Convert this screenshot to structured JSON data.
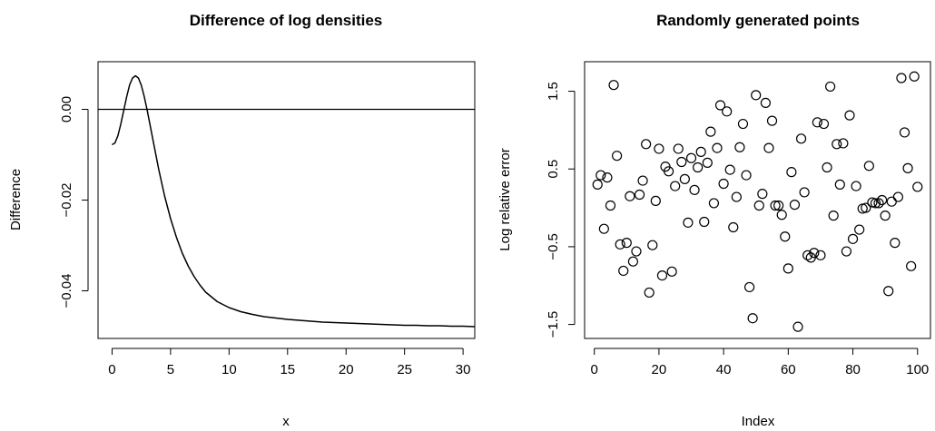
{
  "chart_data": [
    {
      "type": "line",
      "title": "Difference of log densities",
      "xlabel": "x",
      "ylabel": "Difference",
      "xlim": [
        -1.2,
        31
      ],
      "ylim": [
        -0.0505,
        0.0105
      ],
      "xticks": [
        0,
        5,
        10,
        15,
        20,
        25,
        30
      ],
      "xtick_labels": [
        "0",
        "5",
        "10",
        "15",
        "20",
        "25",
        "30"
      ],
      "yticks": [
        -0.04,
        -0.02,
        0.0
      ],
      "ytick_labels": [
        "−0.04",
        "−0.02",
        "0.00"
      ],
      "reference_line_y": 0,
      "series": [
        {
          "x": [
            0,
            0.25,
            0.5,
            0.75,
            1,
            1.25,
            1.5,
            1.75,
            2,
            2.25,
            2.5,
            2.75,
            3,
            3.5,
            4,
            4.5,
            5,
            5.5,
            6,
            6.5,
            7,
            7.5,
            8,
            9,
            10,
            11,
            12,
            13,
            14,
            15,
            16,
            17,
            18,
            19,
            20,
            21,
            22,
            23,
            24,
            25,
            26,
            27,
            28,
            29,
            30,
            31
          ],
          "y": [
            -0.0078,
            -0.0074,
            -0.0058,
            -0.0032,
            -0.0002,
            0.0028,
            0.0054,
            0.0069,
            0.0074,
            0.0069,
            0.0053,
            0.0028,
            -0.0002,
            -0.0068,
            -0.0134,
            -0.0192,
            -0.0241,
            -0.0282,
            -0.0317,
            -0.0345,
            -0.0368,
            -0.0387,
            -0.0403,
            -0.0424,
            -0.0437,
            -0.0446,
            -0.0452,
            -0.0457,
            -0.046,
            -0.0463,
            -0.0465,
            -0.0467,
            -0.0469,
            -0.047,
            -0.0471,
            -0.0472,
            -0.0473,
            -0.0474,
            -0.0475,
            -0.0476,
            -0.0476,
            -0.0477,
            -0.0477,
            -0.0478,
            -0.0478,
            -0.0479
          ]
        }
      ]
    },
    {
      "type": "scatter",
      "title": "Randomly generated points",
      "xlabel": "Index",
      "ylabel": "Log relative error",
      "xlim": [
        -3,
        104
      ],
      "ylim": [
        -1.68,
        1.88
      ],
      "xticks": [
        0,
        20,
        40,
        60,
        80,
        100
      ],
      "xtick_labels": [
        "0",
        "20",
        "40",
        "60",
        "80",
        "100"
      ],
      "yticks": [
        -1.5,
        -0.5,
        0.5,
        1.5
      ],
      "ytick_labels": [
        "−1.5",
        "−0.5",
        "0.5",
        "1.5"
      ],
      "series": [
        {
          "x": [
            1,
            2,
            3,
            4,
            5,
            6,
            7,
            8,
            9,
            10,
            11,
            12,
            13,
            14,
            15,
            16,
            17,
            18,
            19,
            20,
            21,
            22,
            23,
            24,
            25,
            26,
            27,
            28,
            29,
            30,
            31,
            32,
            33,
            34,
            35,
            36,
            37,
            38,
            39,
            40,
            41,
            42,
            43,
            44,
            45,
            46,
            47,
            48,
            49,
            50,
            51,
            52,
            53,
            54,
            55,
            56,
            57,
            58,
            59,
            60,
            61,
            62,
            63,
            64,
            65,
            66,
            67,
            68,
            69,
            70,
            71,
            72,
            73,
            74,
            75,
            76,
            77,
            78,
            79,
            80,
            81,
            82,
            83,
            84,
            85,
            86,
            87,
            88,
            89,
            90,
            91,
            92,
            93,
            94,
            95,
            96,
            97,
            98,
            99,
            100
          ],
          "y": [
            0.3,
            0.42,
            -0.27,
            0.39,
            0.03,
            1.58,
            0.67,
            -0.47,
            -0.81,
            -0.45,
            0.15,
            -0.69,
            -0.56,
            0.17,
            0.35,
            0.82,
            -1.09,
            -0.48,
            0.09,
            0.76,
            -0.87,
            0.53,
            0.47,
            -0.82,
            0.28,
            0.76,
            0.59,
            0.37,
            -0.19,
            0.64,
            0.23,
            0.52,
            0.72,
            -0.18,
            0.58,
            0.98,
            0.06,
            0.77,
            1.32,
            0.31,
            1.24,
            0.49,
            -0.25,
            0.14,
            0.78,
            1.08,
            0.42,
            -1.02,
            -1.42,
            1.45,
            0.03,
            0.18,
            1.35,
            0.77,
            1.12,
            0.03,
            0.03,
            -0.09,
            -0.37,
            -0.78,
            0.46,
            0.04,
            -1.53,
            0.89,
            0.2,
            -0.61,
            -0.64,
            -0.58,
            1.1,
            -0.61,
            1.08,
            0.52,
            1.56,
            -0.1,
            0.82,
            0.3,
            0.83,
            -0.56,
            1.19,
            -0.4,
            0.28,
            -0.28,
            -0.01,
            0.0,
            0.54,
            0.07,
            0.06,
            0.06,
            0.1,
            -0.1,
            -1.07,
            0.08,
            -0.45,
            0.14,
            1.67,
            0.97,
            0.51,
            -0.75,
            1.69,
            0.27
          ]
        }
      ]
    }
  ]
}
